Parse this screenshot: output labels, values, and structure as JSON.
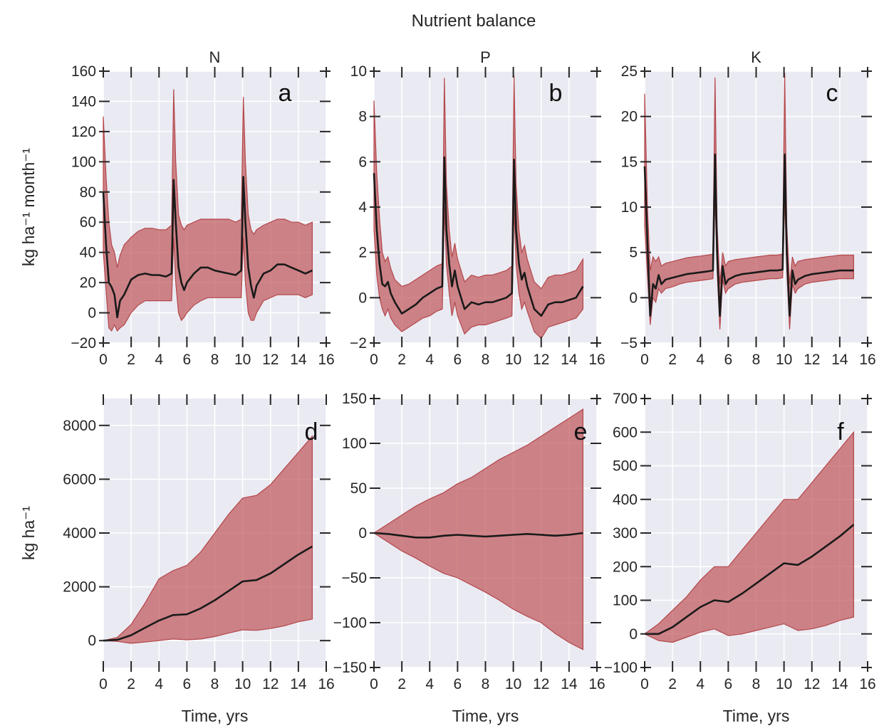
{
  "figure": {
    "title": "Nutrient balance"
  },
  "colors": {
    "background": "#eaeaf2",
    "grid": "#ffffff",
    "band": "#c0595b",
    "band_edge": "#b3474b",
    "line": "#1a1a1a",
    "tick": "#262626"
  },
  "chart_data": [
    {
      "id": "a",
      "type": "area",
      "panel_letter": "a",
      "title": "N",
      "ylabel": "kg ha⁻¹ month⁻¹",
      "xlabel": "",
      "xlim": [
        0,
        16
      ],
      "ylim": [
        -20,
        160
      ],
      "xticks": [
        0,
        2,
        4,
        6,
        8,
        10,
        12,
        14,
        16
      ],
      "yticks": [
        -20,
        0,
        20,
        40,
        60,
        80,
        100,
        120,
        140,
        160
      ],
      "ytick_labels": [
        "−20",
        "0",
        "20",
        "40",
        "60",
        "80",
        "100",
        "120",
        "140",
        "160"
      ],
      "grid": true,
      "series": [
        {
          "x": [
            0,
            0.2,
            0.4,
            0.6,
            0.8,
            1.0,
            1.2,
            1.5,
            2.0,
            2.5,
            3.0,
            3.5,
            4.0,
            4.5,
            4.9,
            5.05,
            5.2,
            5.4,
            5.6,
            5.8,
            6.0,
            6.5,
            7.0,
            7.5,
            8.0,
            8.5,
            9.0,
            9.5,
            9.9,
            10.05,
            10.2,
            10.4,
            10.6,
            10.8,
            11.0,
            11.5,
            12.0,
            12.5,
            13.0,
            13.5,
            14.0,
            14.5,
            15.0
          ],
          "mean": [
            80,
            45,
            20,
            17,
            12,
            -3,
            8,
            12,
            22,
            25,
            26,
            25,
            25,
            24,
            26,
            88,
            60,
            30,
            20,
            15,
            20,
            26,
            30,
            30,
            28,
            27,
            26,
            25,
            28,
            90,
            60,
            30,
            18,
            10,
            18,
            26,
            28,
            32,
            32,
            30,
            28,
            26,
            28
          ],
          "lower": [
            40,
            15,
            -10,
            -12,
            -8,
            -12,
            -10,
            -8,
            0,
            5,
            8,
            8,
            8,
            8,
            8,
            50,
            20,
            0,
            -5,
            -3,
            0,
            5,
            8,
            10,
            10,
            10,
            10,
            10,
            10,
            50,
            20,
            0,
            -5,
            -5,
            0,
            8,
            10,
            12,
            12,
            12,
            12,
            10,
            12
          ],
          "upper": [
            130,
            90,
            60,
            45,
            40,
            30,
            38,
            45,
            50,
            54,
            56,
            56,
            55,
            55,
            58,
            148,
            100,
            65,
            58,
            55,
            58,
            60,
            62,
            62,
            62,
            62,
            62,
            60,
            62,
            143,
            100,
            65,
            55,
            52,
            55,
            58,
            60,
            62,
            62,
            60,
            60,
            58,
            60
          ]
        }
      ]
    },
    {
      "id": "b",
      "type": "area",
      "panel_letter": "b",
      "title": "P",
      "ylabel": "",
      "xlabel": "",
      "xlim": [
        0,
        16
      ],
      "ylim": [
        -2,
        10
      ],
      "xticks": [
        0,
        2,
        4,
        6,
        8,
        10,
        12,
        14,
        16
      ],
      "yticks": [
        -2,
        0,
        2,
        4,
        6,
        8,
        10
      ],
      "ytick_labels": [
        "−2",
        "0",
        "2",
        "4",
        "6",
        "8",
        "10"
      ],
      "grid": true,
      "series": [
        {
          "x": [
            0,
            0.2,
            0.4,
            0.6,
            0.8,
            1.0,
            1.2,
            1.5,
            2.0,
            2.5,
            3.0,
            3.5,
            4.0,
            4.5,
            4.9,
            5.05,
            5.2,
            5.4,
            5.6,
            5.8,
            6.0,
            6.5,
            7.0,
            7.5,
            8.0,
            8.5,
            9.0,
            9.5,
            9.9,
            10.05,
            10.2,
            10.4,
            10.6,
            10.8,
            11.0,
            11.5,
            12.0,
            12.5,
            13.0,
            13.5,
            14.0,
            14.5,
            15.0
          ],
          "mean": [
            5.5,
            3.0,
            1.5,
            0.6,
            0.5,
            0.7,
            0.2,
            -0.2,
            -0.7,
            -0.5,
            -0.3,
            0.0,
            0.2,
            0.4,
            0.5,
            6.2,
            3.0,
            1.5,
            0.5,
            1.2,
            0.5,
            -0.5,
            -0.2,
            -0.3,
            -0.2,
            -0.2,
            -0.1,
            0.0,
            0.2,
            6.1,
            3.0,
            1.5,
            0.8,
            1.1,
            0.5,
            -0.5,
            -0.8,
            -0.3,
            -0.2,
            -0.2,
            -0.1,
            0.0,
            0.5
          ],
          "lower": [
            3.0,
            1.0,
            0.0,
            -0.5,
            -0.8,
            -0.5,
            -0.9,
            -1.2,
            -1.5,
            -1.3,
            -1.1,
            -0.9,
            -0.8,
            -0.6,
            -0.5,
            4.0,
            1.5,
            0.2,
            -0.8,
            -0.2,
            -0.8,
            -1.6,
            -1.3,
            -1.2,
            -1.2,
            -1.1,
            -1.0,
            -0.9,
            -0.8,
            4.0,
            1.5,
            0.2,
            -0.5,
            -0.2,
            -0.6,
            -1.5,
            -1.8,
            -1.3,
            -1.2,
            -1.1,
            -1.0,
            -0.9,
            -0.5
          ],
          "upper": [
            8.7,
            5.5,
            3.5,
            2.0,
            1.6,
            1.8,
            1.3,
            0.8,
            0.5,
            0.6,
            0.8,
            1.0,
            1.2,
            1.4,
            1.5,
            9.7,
            5.0,
            3.0,
            1.8,
            2.4,
            1.7,
            0.7,
            1.0,
            0.9,
            1.0,
            1.0,
            1.1,
            1.2,
            1.4,
            9.8,
            5.0,
            3.0,
            2.0,
            2.3,
            1.7,
            0.7,
            0.4,
            0.9,
            1.0,
            1.0,
            1.1,
            1.2,
            1.7
          ]
        }
      ]
    },
    {
      "id": "c",
      "type": "area",
      "panel_letter": "c",
      "title": "K",
      "ylabel": "",
      "xlabel": "",
      "xlim": [
        0,
        16
      ],
      "ylim": [
        -5,
        25
      ],
      "xticks": [
        0,
        2,
        4,
        6,
        8,
        10,
        12,
        14,
        16
      ],
      "yticks": [
        -5,
        0,
        5,
        10,
        15,
        20,
        25
      ],
      "ytick_labels": [
        "−5",
        "0",
        "5",
        "10",
        "15",
        "20",
        "25"
      ],
      "grid": true,
      "series": [
        {
          "x": [
            0,
            0.2,
            0.4,
            0.6,
            0.8,
            1.0,
            1.2,
            1.5,
            2.0,
            2.5,
            3.0,
            3.5,
            4.0,
            4.5,
            4.9,
            5.05,
            5.2,
            5.4,
            5.6,
            5.8,
            6.0,
            6.5,
            7.0,
            7.5,
            8.0,
            8.5,
            9.0,
            9.5,
            9.9,
            10.05,
            10.2,
            10.4,
            10.6,
            10.8,
            11.0,
            11.5,
            12.0,
            12.5,
            13.0,
            13.5,
            14.0,
            14.5,
            15.0
          ],
          "mean": [
            14.5,
            6.0,
            -2.0,
            1.5,
            1.0,
            2.5,
            1.5,
            2.0,
            2.2,
            2.4,
            2.6,
            2.7,
            2.8,
            2.9,
            3.0,
            15.8,
            5.0,
            -2.0,
            3.5,
            1.5,
            2.0,
            2.4,
            2.6,
            2.7,
            2.8,
            2.9,
            3.0,
            3.0,
            3.1,
            15.8,
            5.0,
            -2.0,
            3.0,
            1.5,
            2.0,
            2.4,
            2.6,
            2.7,
            2.8,
            2.9,
            3.0,
            3.0,
            3.0
          ],
          "lower": [
            8.0,
            2.5,
            -3.0,
            0.0,
            -0.5,
            1.0,
            0.5,
            1.0,
            1.2,
            1.5,
            1.7,
            1.8,
            1.9,
            2.0,
            2.1,
            11.0,
            3.0,
            -3.5,
            2.0,
            0.5,
            1.0,
            1.5,
            1.7,
            1.8,
            1.9,
            2.0,
            2.1,
            2.1,
            2.2,
            11.0,
            3.0,
            -3.5,
            1.5,
            0.5,
            1.0,
            1.5,
            1.7,
            1.8,
            1.9,
            2.0,
            2.1,
            2.1,
            2.1
          ],
          "upper": [
            22.5,
            10.0,
            3.0,
            4.5,
            4.0,
            4.5,
            3.5,
            3.8,
            4.0,
            4.2,
            4.4,
            4.5,
            4.6,
            4.7,
            4.8,
            24.3,
            8.0,
            1.5,
            5.0,
            3.5,
            4.0,
            4.2,
            4.3,
            4.4,
            4.5,
            4.6,
            4.7,
            4.7,
            4.8,
            24.8,
            8.0,
            1.5,
            4.5,
            3.5,
            4.0,
            4.2,
            4.3,
            4.4,
            4.5,
            4.6,
            4.7,
            4.7,
            4.7
          ]
        }
      ]
    },
    {
      "id": "d",
      "type": "area",
      "panel_letter": "d",
      "title": "",
      "ylabel": "kg ha⁻¹",
      "xlabel": "Time, yrs",
      "xlim": [
        0,
        16
      ],
      "ylim": [
        -1000,
        9000
      ],
      "xticks": [
        0,
        2,
        4,
        6,
        8,
        10,
        12,
        14,
        16
      ],
      "yticks": [
        0,
        2000,
        4000,
        6000,
        8000
      ],
      "ytick_labels": [
        "0",
        "2000",
        "4000",
        "6000",
        "8000"
      ],
      "grid": true,
      "series": [
        {
          "x": [
            0,
            1,
            2,
            3,
            4,
            5,
            6,
            7,
            8,
            9,
            10,
            11,
            12,
            13,
            14,
            15
          ],
          "mean": [
            0,
            30,
            200,
            480,
            750,
            950,
            980,
            1200,
            1500,
            1850,
            2200,
            2250,
            2500,
            2850,
            3200,
            3500
          ],
          "lower": [
            0,
            -30,
            -100,
            -50,
            0,
            60,
            30,
            60,
            150,
            280,
            400,
            380,
            450,
            550,
            700,
            800
          ],
          "upper": [
            0,
            120,
            600,
            1400,
            2300,
            2600,
            2800,
            3300,
            4000,
            4700,
            5300,
            5400,
            5800,
            6400,
            7000,
            7600
          ]
        }
      ]
    },
    {
      "id": "e",
      "type": "area",
      "panel_letter": "e",
      "title": "",
      "ylabel": "",
      "xlabel": "Time, yrs",
      "xlim": [
        0,
        16
      ],
      "ylim": [
        -150,
        150
      ],
      "xticks": [
        0,
        2,
        4,
        6,
        8,
        10,
        12,
        14,
        16
      ],
      "yticks": [
        -150,
        -100,
        -50,
        0,
        50,
        100,
        150
      ],
      "ytick_labels": [
        "−150",
        "−100",
        "−50",
        "0",
        "50",
        "100",
        "150"
      ],
      "grid": true,
      "series": [
        {
          "x": [
            0,
            1,
            2,
            3,
            4,
            5,
            6,
            7,
            8,
            9,
            10,
            11,
            12,
            13,
            14,
            15
          ],
          "mean": [
            0,
            -1,
            -3,
            -5,
            -5,
            -3,
            -2,
            -3,
            -4,
            -3,
            -2,
            -1,
            -2,
            -3,
            -2,
            0
          ],
          "lower": [
            0,
            -10,
            -20,
            -28,
            -37,
            -45,
            -50,
            -58,
            -66,
            -75,
            -85,
            -93,
            -100,
            -112,
            -122,
            -130
          ],
          "upper": [
            0,
            10,
            20,
            30,
            38,
            45,
            55,
            62,
            72,
            82,
            90,
            98,
            108,
            118,
            128,
            138
          ]
        }
      ]
    },
    {
      "id": "f",
      "type": "area",
      "panel_letter": "f",
      "title": "",
      "ylabel": "",
      "xlabel": "Time, yrs",
      "xlim": [
        0,
        16
      ],
      "ylim": [
        -100,
        700
      ],
      "xticks": [
        0,
        2,
        4,
        6,
        8,
        10,
        12,
        14,
        16
      ],
      "yticks": [
        -100,
        0,
        100,
        200,
        300,
        400,
        500,
        600,
        700
      ],
      "ytick_labels": [
        "−100",
        "0",
        "100",
        "200",
        "300",
        "400",
        "500",
        "600",
        "700"
      ],
      "grid": true,
      "series": [
        {
          "x": [
            0,
            1,
            2,
            3,
            4,
            5,
            6,
            7,
            8,
            9,
            10,
            11,
            12,
            13,
            14,
            15
          ],
          "mean": [
            0,
            0,
            20,
            50,
            80,
            100,
            95,
            120,
            150,
            180,
            210,
            205,
            230,
            260,
            290,
            325
          ],
          "lower": [
            0,
            -20,
            -25,
            -10,
            5,
            15,
            -5,
            0,
            10,
            20,
            30,
            10,
            15,
            25,
            40,
            50
          ],
          "upper": [
            0,
            30,
            70,
            110,
            160,
            200,
            200,
            250,
            300,
            350,
            400,
            400,
            450,
            500,
            550,
            600
          ]
        }
      ]
    }
  ]
}
